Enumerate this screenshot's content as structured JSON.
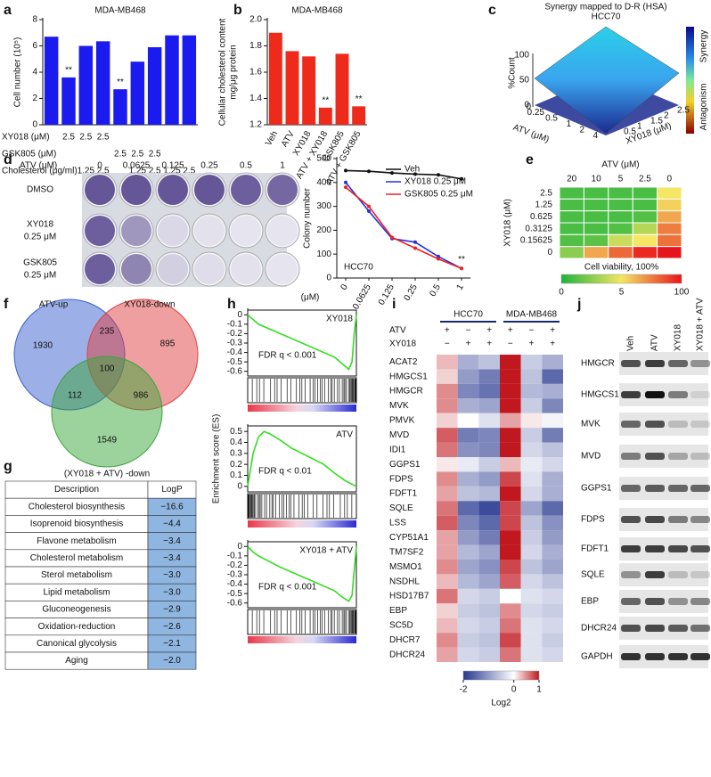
{
  "panels": [
    "a",
    "b",
    "c",
    "d",
    "e",
    "f",
    "g",
    "h",
    "i",
    "j"
  ],
  "chart_data": [
    {
      "type": "bar",
      "title": "MDA-MB468",
      "y_label": "Cell number (10⁵)",
      "color": "#1b1bef",
      "values": [
        6.7,
        3.6,
        6.0,
        6.35,
        2.7,
        4.8,
        5.9,
        6.8,
        6.8
      ],
      "significance": [
        null,
        "**",
        null,
        null,
        "**",
        null,
        null,
        null,
        null
      ],
      "ylim": [
        0,
        8
      ],
      "yticks": [
        0,
        2,
        4,
        6,
        8
      ],
      "conditions": [
        {
          "name": "XY018 (μM)",
          "values": [
            null,
            "2.5",
            "2.5",
            "2.5",
            null,
            null,
            null,
            null,
            null
          ]
        },
        {
          "name": "GSK805 (μM)",
          "values": [
            null,
            null,
            null,
            null,
            "2.5",
            "2.5",
            "2.5",
            null,
            null
          ]
        },
        {
          "name": "Cholesterol (μg/ml)",
          "values": [
            null,
            null,
            "1.25",
            "2.5",
            null,
            "1.25",
            "2.5",
            "1.25",
            "2.5"
          ]
        }
      ]
    },
    {
      "type": "bar",
      "title": "MDA-MB468",
      "y_label": [
        "Cellular cholesterol content",
        "mg/μg protein"
      ],
      "color": "#ee2a1b",
      "categories": [
        "Veh",
        "ATV",
        "XY018",
        "ATV + XY018",
        "GSK805",
        "ATV + GSK805"
      ],
      "values": [
        1.9,
        1.76,
        1.72,
        1.33,
        1.74,
        1.34
      ],
      "significance": [
        null,
        null,
        null,
        "**",
        null,
        "**"
      ],
      "ylim": [
        1.2,
        2.0
      ],
      "yticks": [
        1.2,
        1.4,
        1.6,
        1.8,
        {
          "value": 2,
          "label": "2.0"
        }
      ]
    },
    {
      "type": "line",
      "y_label": "Colony number",
      "x_label": "(μM)",
      "note": "HCC70",
      "end_label": "**",
      "markers": true,
      "categories": [
        "0",
        "0.0625",
        "0.125",
        "0.25",
        "0.5",
        "1"
      ],
      "series": [
        {
          "name": "Veh",
          "color": "#111111",
          "values": [
            450,
            447,
            440,
            435,
            432,
            415
          ]
        },
        {
          "name": "XY018 0.25 μM",
          "color": "#2233dd",
          "values": [
            400,
            280,
            165,
            150,
            90,
            40
          ]
        },
        {
          "name": "GSK805 0.25 μM",
          "color": "#ee2222",
          "values": [
            380,
            300,
            170,
            125,
            80,
            40
          ]
        }
      ],
      "ylim": [
        0,
        500
      ],
      "yticks": [
        0,
        100,
        200,
        300,
        400,
        500
      ],
      "legend": "upper right"
    },
    {
      "type": "heatmap",
      "x_label": "ATV (μM)",
      "y_label": "XY018 (μM)",
      "columns": [
        "20",
        "10",
        "5",
        "2.5",
        "0"
      ],
      "rows": [
        "2.5",
        "1.25",
        "0.625",
        "0.3125",
        "0.15625",
        "0"
      ],
      "values": [
        [
          10,
          10,
          10,
          10,
          50
        ],
        [
          10,
          10,
          10,
          10,
          55
        ],
        [
          10,
          10,
          10,
          12,
          65
        ],
        [
          10,
          10,
          12,
          35,
          75
        ],
        [
          12,
          15,
          40,
          50,
          78
        ],
        [
          25,
          65,
          80,
          95,
          100
        ]
      ],
      "clim": [
        0,
        100
      ],
      "colors": [
        "#1eb33c",
        "#f5e663",
        "#e8141b"
      ],
      "colorbar_title": "Cell viability, 100%",
      "colorbar_labels": [
        "0",
        "5",
        "100"
      ]
    },
    {
      "type": "line",
      "title": "XY018",
      "annotation": "FDR q < 0.001",
      "x": [
        0,
        0.05,
        0.1,
        0.2,
        0.3,
        0.4,
        0.5,
        0.6,
        0.7,
        0.8,
        0.85,
        0.9,
        0.93,
        0.96,
        0.98,
        1
      ],
      "series": [
        {
          "color": "#33dd22",
          "values": [
            0,
            -0.05,
            -0.1,
            -0.15,
            -0.2,
            -0.25,
            -0.3,
            -0.35,
            -0.4,
            -0.45,
            -0.5,
            -0.55,
            -0.58,
            -0.5,
            -0.2,
            0
          ]
        }
      ],
      "xlim": [
        0,
        1
      ],
      "ylim": [
        -0.65,
        0.05
      ],
      "yticks": [
        -0.6,
        -0.5,
        -0.4,
        -0.3,
        -0.2,
        -0.1,
        0
      ]
    },
    {
      "type": "line",
      "title": "ATV",
      "annotation": "FDR q < 0.01",
      "y_label": "Enrichment score (ES)",
      "x": [
        0,
        0.05,
        0.1,
        0.15,
        0.2,
        0.3,
        0.4,
        0.5,
        0.6,
        0.7,
        0.8,
        0.9,
        1
      ],
      "series": [
        {
          "color": "#33dd22",
          "values": [
            0,
            0.3,
            0.45,
            0.5,
            0.48,
            0.42,
            0.35,
            0.3,
            0.25,
            0.2,
            0.12,
            0.05,
            0
          ]
        }
      ],
      "xlim": [
        0,
        1
      ],
      "ylim": [
        -0.05,
        0.55
      ],
      "yticks": [
        0,
        0.1,
        0.2,
        0.3,
        0.4,
        0.5
      ]
    },
    {
      "type": "line",
      "title": "XY018 + ATV",
      "annotation": "FDR q < 0.001",
      "x": [
        0,
        0.05,
        0.1,
        0.2,
        0.3,
        0.4,
        0.5,
        0.6,
        0.7,
        0.8,
        0.85,
        0.9,
        0.93,
        0.96,
        0.98,
        1
      ],
      "series": [
        {
          "color": "#33dd22",
          "values": [
            0,
            -0.06,
            -0.1,
            -0.16,
            -0.22,
            -0.27,
            -0.32,
            -0.37,
            -0.42,
            -0.47,
            -0.52,
            -0.56,
            -0.58,
            -0.52,
            -0.25,
            0
          ]
        }
      ],
      "xlim": [
        0,
        1
      ],
      "ylim": [
        -0.65,
        0.05
      ],
      "yticks": [
        -0.6,
        -0.5,
        -0.4,
        -0.3,
        -0.2,
        -0.1,
        0
      ]
    },
    {
      "type": "heatmap",
      "column_groups": [
        "HCC70",
        "MDA-MB468"
      ],
      "conditions": [
        {
          "name": "ATV",
          "values": [
            "+",
            "−",
            "+",
            "+",
            "−",
            "+"
          ]
        },
        {
          "name": "XY018",
          "values": [
            "−",
            "+",
            "+",
            "−",
            "+",
            "+"
          ]
        }
      ],
      "rows": [
        "ACAT2",
        "HMGCS1",
        "HMGCR",
        "MVK",
        "PMVK",
        "MVD",
        "IDI1",
        "GGPS1",
        "FDPS",
        "FDFT1",
        "SQLE",
        "LSS",
        "CYP51A1",
        "TM7SF2",
        "MSMO1",
        "NSDHL",
        "HSD17B7",
        "EBP",
        "SC5D",
        "DHCR7",
        "DHCR24"
      ],
      "values": [
        [
          0.3,
          -0.8,
          -0.6,
          1,
          -0.5,
          -0.8
        ],
        [
          0.2,
          -1,
          -1.3,
          1,
          -0.6,
          -1.5
        ],
        [
          0.5,
          -1.2,
          -1.4,
          1,
          -0.7,
          -0.8
        ],
        [
          0.5,
          -0.8,
          -0.9,
          1,
          -0.5,
          -1.2
        ],
        [
          0.2,
          0,
          -0.3,
          0.4,
          0.1,
          -0.1
        ],
        [
          0.7,
          -1.3,
          -1.2,
          1,
          -0.5,
          -1.3
        ],
        [
          0.6,
          -1.1,
          -1.2,
          1,
          -0.4,
          -0.6
        ],
        [
          0.1,
          -0.2,
          -0.5,
          0.3,
          -0.2,
          -0.4
        ],
        [
          0.5,
          -0.8,
          -1,
          0.8,
          -0.3,
          -0.8
        ],
        [
          0.4,
          -0.6,
          -0.7,
          1,
          -0.4,
          -0.8
        ],
        [
          0.6,
          -1.5,
          -1.8,
          0.8,
          -0.9,
          -1.5
        ],
        [
          0.7,
          -1.2,
          -1.5,
          0.8,
          -0.6,
          -1.1
        ],
        [
          0.4,
          -1,
          -1.3,
          1,
          -0.5,
          -1
        ],
        [
          0.4,
          -0.7,
          -0.9,
          1,
          -0.4,
          -0.8
        ],
        [
          0.5,
          -0.9,
          -1.1,
          0.8,
          -0.6,
          -0.9
        ],
        [
          0.3,
          -0.7,
          -0.9,
          0.7,
          -0.4,
          -0.6
        ],
        [
          0.6,
          -0.4,
          -0.5,
          0,
          -0.3,
          -0.4
        ],
        [
          0.2,
          -0.5,
          -0.6,
          0.5,
          -0.4,
          -0.5
        ],
        [
          0.3,
          -0.4,
          -0.5,
          0.6,
          -0.3,
          -0.4
        ],
        [
          0.5,
          -0.5,
          -0.6,
          0.8,
          -0.3,
          -0.5
        ],
        [
          0.4,
          -0.4,
          -0.5,
          0.6,
          -0.3,
          -0.4
        ]
      ],
      "clim": [
        -2,
        1
      ],
      "colors": [
        "#26378f",
        "#ffffff",
        "#c0181e"
      ],
      "colorbar_title": "Log2",
      "colorbar_ticks": [
        -2,
        0,
        1
      ]
    }
  ],
  "synergy": {
    "title": "Synergy mapped to D-R (HSA)",
    "subtitle": "HCC70",
    "z_label": "%Count",
    "z_ticks": [
      "100",
      "50",
      "0"
    ],
    "x_label": "ATV (μM)",
    "x_ticks": [
      "0",
      "0.25",
      "0.5",
      "1",
      "2",
      "4"
    ],
    "y_label": "XY018 (μM)",
    "y_ticks": [
      "2.5",
      "2",
      "1.5",
      "1",
      "0.5"
    ],
    "colorbar_top": "Synergy",
    "colorbar_bottom": "Antagonism"
  },
  "plates": {
    "header": "ATV (μM)",
    "doses": [
      "0",
      "0.0625",
      "0.125",
      "0.25",
      "0.5",
      "1"
    ],
    "rows": [
      {
        "name": "DMSO"
      },
      {
        "name": "XY018",
        "dose": "0.25 μM"
      },
      {
        "name": "GSK805",
        "dose": "0.25 μM"
      }
    ]
  },
  "venn": {
    "sets": [
      "ATV-up",
      "XY018-down",
      "(XY018 + ATV) -down"
    ],
    "regions": [
      1930,
      235,
      895,
      100,
      112,
      986,
      1549
    ]
  },
  "table": {
    "header": [
      "Description",
      "LogP"
    ],
    "rows": [
      [
        "Cholesterol biosynthesis",
        "−16.6"
      ],
      [
        "Isoprenoid biosynthesis",
        "−4.4"
      ],
      [
        "Flavone metabolism",
        "−3.4"
      ],
      [
        "Cholesterol metabolism",
        "−3.4"
      ],
      [
        "Sterol metabolism",
        "−3.0"
      ],
      [
        "Lipid metabolism",
        "−3.0"
      ],
      [
        "Gluconeogenesis",
        "−2.9"
      ],
      [
        "Oxidation-reduction",
        "−2.6"
      ],
      [
        "Canonical glycolysis",
        "−2.1"
      ],
      [
        "Aging",
        "−2.0"
      ]
    ]
  },
  "blot": {
    "lanes": [
      "Veh",
      "ATV",
      "XY018",
      "XY018 + ATV"
    ],
    "proteins": [
      "HMGCR",
      "HMGCS1",
      "MVK",
      "MVD",
      "GGPS1",
      "FDPS",
      "FDFT1",
      "SQLE",
      "EBP",
      "DHCR24",
      "GAPDH"
    ]
  }
}
